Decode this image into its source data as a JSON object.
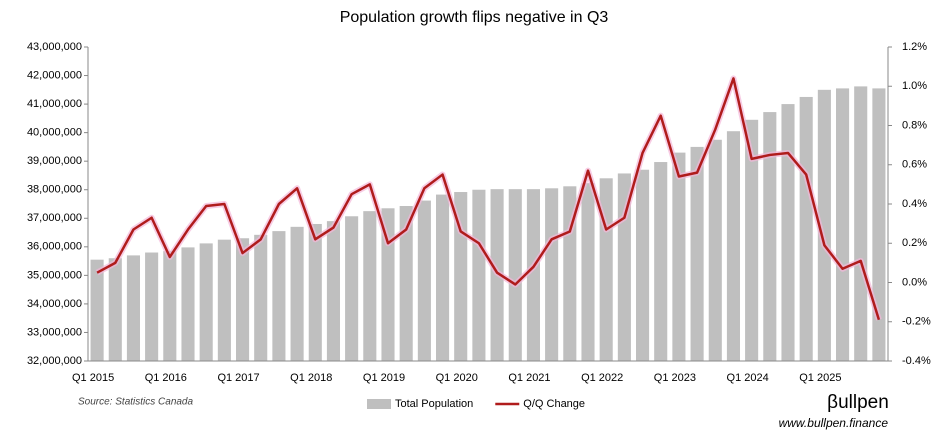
{
  "chart_data": {
    "type": "bar_line",
    "title": "Population growth flips negative in Q3",
    "categories": [
      "Q1 2015",
      null,
      null,
      null,
      "Q1 2016",
      null,
      null,
      null,
      "Q1 2017",
      null,
      null,
      null,
      "Q1 2018",
      null,
      null,
      null,
      "Q1 2019",
      null,
      null,
      null,
      "Q1 2020",
      null,
      null,
      null,
      "Q1 2021",
      null,
      null,
      null,
      "Q1 2022",
      null,
      null,
      null,
      "Q1 2023",
      null,
      null,
      null,
      "Q1 2024",
      null,
      null,
      null,
      "Q1 2025",
      null,
      null,
      null
    ],
    "series": [
      {
        "name": "Total Population",
        "color": "#bfbfbf",
        "type": "bar",
        "values": [
          35550000,
          35600000,
          35700000,
          35800000,
          35850000,
          35980000,
          36120000,
          36250000,
          36300000,
          36420000,
          36550000,
          36700000,
          36800000,
          36900000,
          37070000,
          37250000,
          37350000,
          37430000,
          37620000,
          37830000,
          37920000,
          38000000,
          38020000,
          38020000,
          38020000,
          38050000,
          38120000,
          38230000,
          38400000,
          38570000,
          38700000,
          38970000,
          39300000,
          39500000,
          39750000,
          40050000,
          40450000,
          40720000,
          41000000,
          41250000,
          41500000,
          41550000,
          41620000,
          41550000
        ]
      },
      {
        "name": "Q/Q Change",
        "color": "#b01c1c",
        "type": "line",
        "axis": "y2",
        "values": [
          0.05,
          0.1,
          0.27,
          0.33,
          0.13,
          0.27,
          0.39,
          0.4,
          0.15,
          0.22,
          0.4,
          0.48,
          0.22,
          0.28,
          0.45,
          0.5,
          0.2,
          0.27,
          0.48,
          0.55,
          0.26,
          0.2,
          0.05,
          -0.01,
          0.08,
          0.22,
          0.26,
          0.57,
          0.27,
          0.33,
          0.66,
          0.85,
          0.54,
          0.56,
          0.78,
          1.04,
          0.63,
          0.65,
          0.66,
          0.55,
          0.19,
          0.07,
          0.11,
          -0.19
        ]
      }
    ],
    "ylim": [
      32000000,
      43000000
    ],
    "yticks": [
      {
        "value": 32000000,
        "label": "32,000,000"
      },
      {
        "value": 33000000,
        "label": "33,000,000"
      },
      {
        "value": 34000000,
        "label": "34,000,000"
      },
      {
        "value": 35000000,
        "label": "35,000,000"
      },
      {
        "value": 36000000,
        "label": "36,000,000"
      },
      {
        "value": 37000000,
        "label": "37,000,000"
      },
      {
        "value": 38000000,
        "label": "38,000,000"
      },
      {
        "value": 39000000,
        "label": "39,000,000"
      },
      {
        "value": 40000000,
        "label": "40,000,000"
      },
      {
        "value": 41000000,
        "label": "41,000,000"
      },
      {
        "value": 42000000,
        "label": "42,000,000"
      },
      {
        "value": 43000000,
        "label": "43,000,000"
      }
    ],
    "y2lim": [
      -0.4,
      1.2
    ],
    "y2ticks": [
      {
        "value": -0.4,
        "label": "-0.4%"
      },
      {
        "value": -0.2,
        "label": "-0.2%"
      },
      {
        "value": 0,
        "label": "0.0%"
      },
      {
        "value": 0.2,
        "label": "0.2%"
      },
      {
        "value": 0.4,
        "label": "0.4%"
      },
      {
        "value": 0.6,
        "label": "0.6%"
      },
      {
        "value": 0.8,
        "label": "0.8%"
      },
      {
        "value": 1.0,
        "label": "1.0%"
      },
      {
        "value": 1.2,
        "label": "1.2%"
      }
    ],
    "legend": "bottom",
    "source": "Source: Statistics Canada",
    "logo": "βullpen",
    "url": "www.bullpen.finance"
  }
}
